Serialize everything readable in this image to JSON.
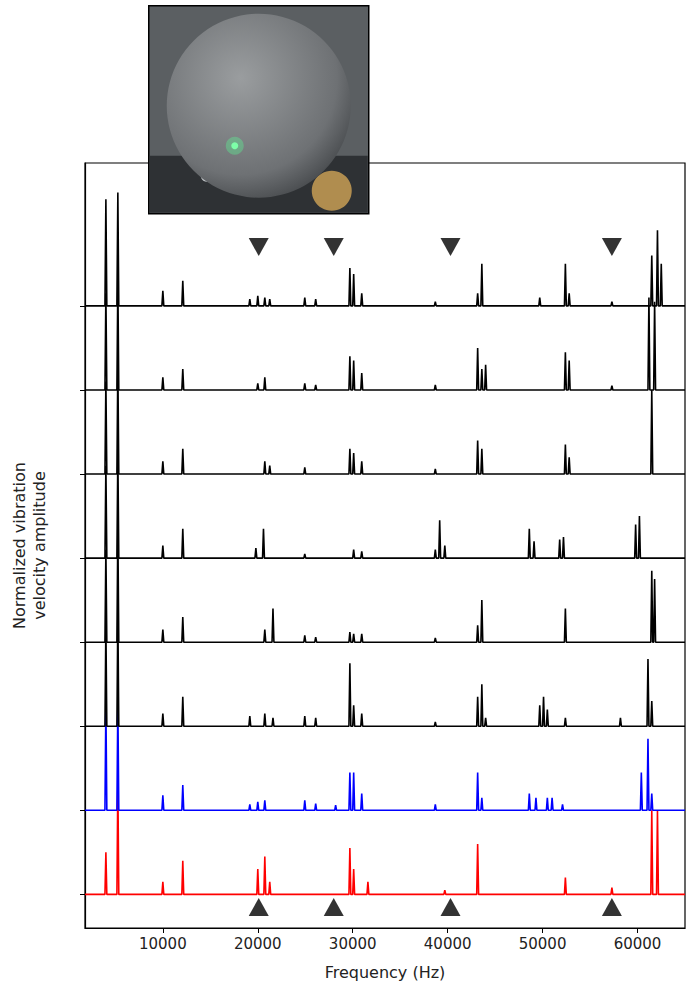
{
  "chart_data": {
    "type": "line",
    "x_label": "Frequency (Hz)",
    "y_label": "Normalized vibration velocity amplitude",
    "xlim": [
      1800,
      65000
    ],
    "xticks": [
      10000,
      20000,
      30000,
      40000,
      50000,
      60000
    ],
    "ylim": [
      -0.4,
      8.7
    ],
    "yticks": [
      0,
      1,
      2,
      3,
      4,
      5,
      6,
      7
    ],
    "tick_labels": "x",
    "grid": false,
    "series": [
      {
        "color": "#ff0000",
        "x": [
          1800,
          3900,
          4000,
          4100,
          5160,
          5260,
          5360,
          9900,
          10000,
          10100,
          12000,
          12100,
          12200,
          19900,
          20000,
          20100,
          20640,
          20740,
          20840,
          21160,
          21260,
          21360,
          29600,
          29700,
          29800,
          30000,
          30100,
          30200,
          31500,
          31600,
          31700,
          39600,
          39700,
          39800,
          43060,
          43160,
          43260,
          52300,
          52400,
          52500,
          57200,
          57300,
          57400,
          61400,
          61500,
          61600,
          62000,
          62100,
          62200,
          65000
        ],
        "values": [
          0,
          0,
          0.5,
          0,
          0,
          1.35,
          0,
          0,
          0.15,
          0,
          0,
          0.4,
          0,
          0,
          0.3,
          0,
          0,
          0.45,
          0,
          0,
          0.15,
          0,
          0,
          0.55,
          0,
          0,
          0.3,
          0,
          0,
          0.15,
          0,
          0,
          0.05,
          0,
          0,
          0.6,
          0,
          0,
          0.2,
          0,
          0,
          0.08,
          0,
          0,
          1,
          0,
          0,
          1,
          0,
          0
        ]
      },
      {
        "color": "#0000ff",
        "x": [
          1800,
          3900,
          4000,
          4100,
          5160,
          5260,
          5360,
          9900,
          10000,
          10100,
          12000,
          12100,
          12200,
          19060,
          19160,
          19260,
          19900,
          20000,
          20100,
          20640,
          20740,
          20840,
          24850,
          24950,
          25050,
          26000,
          26100,
          26200,
          28100,
          28200,
          28300,
          29600,
          29700,
          29800,
          30000,
          30100,
          30200,
          30850,
          30950,
          31050,
          38600,
          38700,
          38800,
          43060,
          43160,
          43260,
          43500,
          43600,
          43700,
          48500,
          48600,
          48700,
          49200,
          49300,
          49400,
          50400,
          50500,
          50600,
          50900,
          51000,
          51100,
          52000,
          52100,
          52200,
          60300,
          60400,
          60500,
          61000,
          61100,
          61200,
          61400,
          61500,
          61600,
          65000
        ],
        "values": [
          1,
          1,
          2.25,
          1,
          1,
          2.28,
          1,
          1,
          1.18,
          1,
          1,
          1.3,
          1,
          1,
          1.07,
          1,
          1,
          1.1,
          1,
          1,
          1.12,
          1,
          1,
          1.12,
          1,
          1,
          1.08,
          1,
          1,
          1.06,
          1,
          1,
          1.45,
          1,
          1,
          1.45,
          1,
          1,
          1.2,
          1,
          1,
          1.07,
          1,
          1,
          1.45,
          1,
          1,
          1.15,
          1,
          1,
          1.2,
          1,
          1,
          1.15,
          1,
          1,
          1.15,
          1,
          1,
          1.15,
          1,
          1,
          1.07,
          1,
          1,
          1.45,
          1,
          1,
          1.85,
          1,
          1,
          1.2,
          1,
          1
        ]
      },
      {
        "color": "#000000",
        "x": [
          1800,
          3900,
          4000,
          4100,
          5160,
          5260,
          5360,
          9900,
          10000,
          10100,
          12000,
          12100,
          12200,
          19060,
          19160,
          19260,
          20640,
          20740,
          20840,
          21500,
          21600,
          21700,
          24850,
          24950,
          25050,
          26000,
          26100,
          26200,
          29600,
          29700,
          29800,
          30000,
          30100,
          30200,
          30850,
          30950,
          31050,
          38600,
          38700,
          38800,
          43060,
          43160,
          43260,
          43500,
          43600,
          43700,
          43900,
          44000,
          44100,
          49600,
          49700,
          49800,
          50000,
          50100,
          50200,
          50400,
          50500,
          50600,
          52300,
          52400,
          52500,
          58100,
          58200,
          58300,
          61000,
          61100,
          61200,
          61400,
          61500,
          61600,
          65000
        ],
        "values": [
          2,
          2,
          3.2,
          2,
          2,
          3.35,
          2,
          2,
          2.15,
          2,
          2,
          2.35,
          2,
          2,
          2.12,
          2,
          2,
          2.15,
          2,
          2,
          2.1,
          2,
          2,
          2.12,
          2,
          2,
          2.1,
          2,
          2,
          2.75,
          2,
          2,
          2.25,
          2,
          2,
          2.15,
          2,
          2,
          2.05,
          2,
          2,
          2.35,
          2,
          2,
          2.5,
          2,
          2,
          2.1,
          2,
          2,
          2.25,
          2,
          2,
          2.35,
          2,
          2,
          2.2,
          2,
          2,
          2.1,
          2,
          2,
          2.1,
          2,
          2,
          2.8,
          2,
          2,
          2.3,
          2,
          2
        ]
      },
      {
        "color": "#000000",
        "x": [
          1800,
          3900,
          4000,
          4100,
          5160,
          5260,
          5360,
          9900,
          10000,
          10100,
          12000,
          12100,
          12200,
          20640,
          20740,
          20840,
          21500,
          21600,
          21700,
          24850,
          24950,
          25050,
          26000,
          26100,
          26200,
          29600,
          29700,
          29800,
          30000,
          30100,
          30200,
          30850,
          30950,
          31050,
          38600,
          38700,
          38800,
          43060,
          43160,
          43260,
          43500,
          43600,
          43700,
          52300,
          52400,
          52500,
          61400,
          61500,
          61600,
          61700,
          61800,
          61900,
          65000
        ],
        "values": [
          3,
          3,
          4.1,
          3,
          3,
          4.35,
          3,
          3,
          3.15,
          3,
          3,
          3.3,
          3,
          3,
          3.15,
          3,
          3,
          3.4,
          3,
          3,
          3.08,
          3,
          3,
          3.06,
          3,
          3,
          3.12,
          3,
          3,
          3.1,
          3,
          3,
          3.1,
          3,
          3,
          3.05,
          3,
          3,
          3.2,
          3,
          3,
          3.5,
          3,
          3,
          3.4,
          3,
          3,
          3.85,
          3,
          3,
          3.75,
          3,
          3
        ]
      },
      {
        "color": "#000000",
        "x": [
          1800,
          3900,
          4000,
          4100,
          5160,
          5260,
          5360,
          9900,
          10000,
          10100,
          12000,
          12100,
          12200,
          19700,
          19800,
          19900,
          20500,
          20600,
          20700,
          24850,
          24950,
          25050,
          30000,
          30100,
          30200,
          30850,
          30950,
          31050,
          38600,
          38700,
          38800,
          39060,
          39160,
          39260,
          39600,
          39700,
          39800,
          48500,
          48600,
          48700,
          49000,
          49100,
          49200,
          51700,
          51800,
          51900,
          52100,
          52200,
          52300,
          59700,
          59800,
          59900,
          60100,
          60200,
          60300,
          65000
        ],
        "values": [
          4,
          4,
          5.1,
          4,
          4,
          5.25,
          4,
          4,
          4.15,
          4,
          4,
          4.35,
          4,
          4,
          4.12,
          4,
          4,
          4.35,
          4,
          4,
          4.05,
          4,
          4,
          4.1,
          4,
          4,
          4.08,
          4,
          4,
          4.1,
          4,
          4,
          4.45,
          4,
          4,
          4.15,
          4,
          4,
          4.35,
          4,
          4,
          4.2,
          4,
          4,
          4.22,
          4,
          4,
          4.25,
          4,
          4,
          4.4,
          4,
          4,
          4.5,
          4,
          4
        ]
      },
      {
        "color": "#000000",
        "x": [
          1800,
          3900,
          4000,
          4100,
          5160,
          5260,
          5360,
          9900,
          10000,
          10100,
          12000,
          12100,
          12200,
          20640,
          20740,
          20840,
          21160,
          21260,
          21360,
          24850,
          24950,
          25050,
          29600,
          29700,
          29800,
          30000,
          30100,
          30200,
          30850,
          30950,
          31050,
          38600,
          38700,
          38800,
          43060,
          43160,
          43260,
          43500,
          43600,
          43700,
          52300,
          52400,
          52500,
          52700,
          52800,
          52900,
          61400,
          61500,
          61600,
          65000
        ],
        "values": [
          5,
          5,
          6.1,
          5,
          5,
          6.3,
          5,
          5,
          5.15,
          5,
          5,
          5.3,
          5,
          5,
          5.15,
          5,
          5,
          5.1,
          5,
          5,
          5.08,
          5,
          5,
          5.3,
          5,
          5,
          5.25,
          5,
          5,
          5.15,
          5,
          5,
          5.06,
          5,
          5,
          5.4,
          5,
          5,
          5.3,
          5,
          5,
          5.35,
          5,
          5,
          5.2,
          5,
          5,
          6,
          5,
          5
        ]
      },
      {
        "color": "#000000",
        "x": [
          1800,
          3900,
          4000,
          4100,
          5160,
          5260,
          5360,
          9900,
          10000,
          10100,
          12000,
          12100,
          12200,
          19900,
          20000,
          20100,
          20640,
          20740,
          20840,
          24850,
          24950,
          25050,
          26000,
          26100,
          26200,
          29600,
          29700,
          29800,
          30000,
          30100,
          30200,
          30850,
          30950,
          31050,
          38600,
          38700,
          38800,
          43060,
          43160,
          43260,
          43500,
          43600,
          43700,
          43900,
          44000,
          44100,
          52300,
          52400,
          52500,
          52700,
          52800,
          52900,
          57200,
          57300,
          57400,
          61100,
          61200,
          61300,
          61700,
          61800,
          61900,
          65000
        ],
        "values": [
          6,
          6,
          7.15,
          6,
          6,
          7.3,
          6,
          6,
          6.15,
          6,
          6,
          6.25,
          6,
          6,
          6.08,
          6,
          6,
          6.15,
          6,
          6,
          6.08,
          6,
          6,
          6.06,
          6,
          6,
          6.4,
          6,
          6,
          6.35,
          6,
          6,
          6.2,
          6,
          6,
          6.06,
          6,
          6,
          6.5,
          6,
          6,
          6.25,
          6,
          6,
          6.3,
          6,
          6,
          6.45,
          6,
          6,
          6.35,
          6,
          6,
          6.05,
          6,
          6,
          7.1,
          6,
          6,
          7.05,
          6,
          6
        ]
      },
      {
        "color": "#000000",
        "x": [
          1800,
          3900,
          4000,
          4100,
          5160,
          5260,
          5360,
          9900,
          10000,
          10100,
          12000,
          12100,
          12200,
          19060,
          19160,
          19260,
          19900,
          20000,
          20100,
          20640,
          20740,
          20840,
          21160,
          21260,
          21360,
          24850,
          24950,
          25050,
          26000,
          26100,
          26200,
          29600,
          29700,
          29800,
          30000,
          30100,
          30200,
          30850,
          30950,
          31050,
          38600,
          38700,
          38800,
          43060,
          43160,
          43260,
          43500,
          43600,
          43700,
          49600,
          49700,
          49800,
          52300,
          52400,
          52500,
          52700,
          52800,
          52900,
          57200,
          57300,
          57400,
          61400,
          61500,
          61600,
          62000,
          62100,
          62200,
          62400,
          62500,
          62600,
          65000
        ],
        "values": [
          7,
          7,
          8.27,
          7,
          7,
          8.35,
          7,
          7,
          7.18,
          7,
          7,
          7.3,
          7,
          7,
          7.08,
          7,
          7,
          7.12,
          7,
          7,
          7.1,
          7,
          7,
          7.08,
          7,
          7,
          7.1,
          7,
          7,
          7.08,
          7,
          7,
          7.45,
          7,
          7,
          7.38,
          7,
          7,
          7.15,
          7,
          7,
          7.05,
          7,
          7,
          7.15,
          7,
          7,
          7.5,
          7,
          7,
          7.1,
          7,
          7,
          7.5,
          7,
          7,
          7.15,
          7,
          7,
          7.05,
          7,
          7,
          7.6,
          7,
          7,
          7.9,
          7,
          7,
          7.5,
          7,
          7
        ]
      }
    ],
    "triangles": [
      {
        "marker": "triangle_down",
        "color": "#000000",
        "x": [
          20100,
          28000,
          40300,
          57300
        ],
        "values": [
          7.7,
          7.7,
          7.7,
          7.7
        ]
      },
      {
        "marker": "triangle_up",
        "color": "#000000",
        "x": [
          20100,
          28000,
          40300,
          57300
        ],
        "values": [
          -0.15,
          -0.15,
          -0.15,
          -0.15
        ]
      }
    ]
  }
}
